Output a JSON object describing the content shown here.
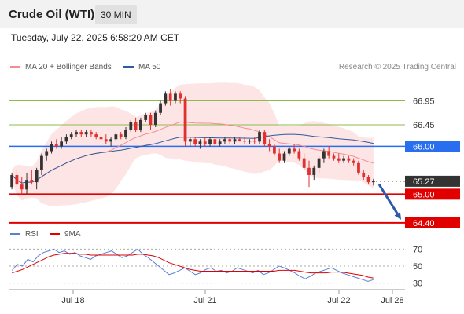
{
  "header": {
    "instrument": "Crude Oil (WTI)",
    "timeframe": "30 MIN"
  },
  "timestamp": "Tuesday, July 22, 2025 6:58:20 AM CET",
  "legend": {
    "ma20_label": "MA 20 + Bollinger Bands",
    "ma50_label": "MA 50",
    "credit": "Research © 2025 Trading Central",
    "rsi_label": "RSI",
    "rsi_ma_label": "9MA"
  },
  "colors": {
    "ma20": "#f28e8e",
    "ma50": "#2f5a9e",
    "up": "#333333",
    "down": "#e03030",
    "support": "#e00000",
    "pivot": "#2a6ef0",
    "resistance": "#8dbb4f",
    "band_fill": "#fde0e0",
    "rsi": "#5a7fd6",
    "rsi_ma": "#e00000",
    "arrow": "#2a5aa8"
  },
  "chart_data": [
    {
      "type": "candlestick",
      "title": "Crude Oil (WTI)",
      "interval": "30 MIN",
      "ylim": [
        64.3,
        67.5
      ],
      "x_ticks": [
        "Jul 18",
        "Jul 21",
        "Jul 22",
        "Jul 28"
      ],
      "candles": [
        {
          "o": 65.15,
          "h": 65.45,
          "l": 65.1,
          "c": 65.4
        },
        {
          "o": 65.4,
          "h": 65.5,
          "l": 65.15,
          "c": 65.2
        },
        {
          "o": 65.2,
          "h": 65.35,
          "l": 65.0,
          "c": 65.1
        },
        {
          "o": 65.1,
          "h": 65.45,
          "l": 65.0,
          "c": 65.3
        },
        {
          "o": 65.3,
          "h": 65.5,
          "l": 65.2,
          "c": 65.25
        },
        {
          "o": 65.25,
          "h": 65.55,
          "l": 65.1,
          "c": 65.5
        },
        {
          "o": 65.5,
          "h": 65.85,
          "l": 65.4,
          "c": 65.8
        },
        {
          "o": 65.8,
          "h": 65.95,
          "l": 65.7,
          "c": 65.9
        },
        {
          "o": 65.9,
          "h": 66.1,
          "l": 65.85,
          "c": 66.05
        },
        {
          "o": 66.05,
          "h": 66.15,
          "l": 65.95,
          "c": 66.0
        },
        {
          "o": 66.0,
          "h": 66.2,
          "l": 65.95,
          "c": 66.1
        },
        {
          "o": 66.1,
          "h": 66.25,
          "l": 66.05,
          "c": 66.2
        },
        {
          "o": 66.2,
          "h": 66.3,
          "l": 66.15,
          "c": 66.25
        },
        {
          "o": 66.25,
          "h": 66.35,
          "l": 66.2,
          "c": 66.3
        },
        {
          "o": 66.3,
          "h": 66.35,
          "l": 66.2,
          "c": 66.25
        },
        {
          "o": 66.25,
          "h": 66.35,
          "l": 66.2,
          "c": 66.3
        },
        {
          "o": 66.3,
          "h": 66.35,
          "l": 66.2,
          "c": 66.25
        },
        {
          "o": 66.25,
          "h": 66.3,
          "l": 66.15,
          "c": 66.2
        },
        {
          "o": 66.2,
          "h": 66.3,
          "l": 66.1,
          "c": 66.15
        },
        {
          "o": 66.15,
          "h": 66.25,
          "l": 66.05,
          "c": 66.1
        },
        {
          "o": 66.1,
          "h": 66.2,
          "l": 66.0,
          "c": 66.15
        },
        {
          "o": 66.15,
          "h": 66.3,
          "l": 66.1,
          "c": 66.25
        },
        {
          "o": 66.25,
          "h": 66.3,
          "l": 66.15,
          "c": 66.2
        },
        {
          "o": 66.2,
          "h": 66.4,
          "l": 66.15,
          "c": 66.35
        },
        {
          "o": 66.35,
          "h": 66.55,
          "l": 66.3,
          "c": 66.5
        },
        {
          "o": 66.5,
          "h": 66.6,
          "l": 66.3,
          "c": 66.35
        },
        {
          "o": 66.35,
          "h": 66.6,
          "l": 66.3,
          "c": 66.55
        },
        {
          "o": 66.55,
          "h": 66.7,
          "l": 66.5,
          "c": 66.65
        },
        {
          "o": 66.65,
          "h": 66.7,
          "l": 66.35,
          "c": 66.45
        },
        {
          "o": 66.45,
          "h": 66.75,
          "l": 66.4,
          "c": 66.7
        },
        {
          "o": 66.7,
          "h": 66.95,
          "l": 66.65,
          "c": 66.9
        },
        {
          "o": 66.9,
          "h": 67.15,
          "l": 66.85,
          "c": 67.1
        },
        {
          "o": 67.1,
          "h": 67.2,
          "l": 66.85,
          "c": 66.95
        },
        {
          "o": 66.95,
          "h": 67.15,
          "l": 66.9,
          "c": 67.1
        },
        {
          "o": 67.1,
          "h": 67.15,
          "l": 66.9,
          "c": 67.0
        },
        {
          "o": 67.0,
          "h": 67.05,
          "l": 66.0,
          "c": 66.1
        },
        {
          "o": 66.1,
          "h": 66.2,
          "l": 66.0,
          "c": 66.15
        },
        {
          "o": 66.15,
          "h": 66.2,
          "l": 66.0,
          "c": 66.05
        },
        {
          "o": 66.05,
          "h": 66.15,
          "l": 65.95,
          "c": 66.1
        },
        {
          "o": 66.1,
          "h": 66.2,
          "l": 66.0,
          "c": 66.05
        },
        {
          "o": 66.05,
          "h": 66.2,
          "l": 66.0,
          "c": 66.15
        },
        {
          "o": 66.15,
          "h": 66.2,
          "l": 66.0,
          "c": 66.05
        },
        {
          "o": 66.05,
          "h": 66.15,
          "l": 66.0,
          "c": 66.1
        },
        {
          "o": 66.1,
          "h": 66.2,
          "l": 66.05,
          "c": 66.15
        },
        {
          "o": 66.15,
          "h": 66.2,
          "l": 66.05,
          "c": 66.1
        },
        {
          "o": 66.1,
          "h": 66.2,
          "l": 66.05,
          "c": 66.15
        },
        {
          "o": 66.15,
          "h": 66.2,
          "l": 66.1,
          "c": 66.12
        },
        {
          "o": 66.12,
          "h": 66.2,
          "l": 66.05,
          "c": 66.1
        },
        {
          "o": 66.1,
          "h": 66.15,
          "l": 66.05,
          "c": 66.12
        },
        {
          "o": 66.12,
          "h": 66.2,
          "l": 66.05,
          "c": 66.1
        },
        {
          "o": 66.1,
          "h": 66.35,
          "l": 66.05,
          "c": 66.3
        },
        {
          "o": 66.3,
          "h": 66.35,
          "l": 66.0,
          "c": 66.05
        },
        {
          "o": 66.05,
          "h": 66.15,
          "l": 65.9,
          "c": 66.0
        },
        {
          "o": 66.0,
          "h": 66.05,
          "l": 65.8,
          "c": 65.85
        },
        {
          "o": 65.85,
          "h": 65.95,
          "l": 65.65,
          "c": 65.7
        },
        {
          "o": 65.7,
          "h": 65.9,
          "l": 65.65,
          "c": 65.85
        },
        {
          "o": 65.85,
          "h": 66.0,
          "l": 65.8,
          "c": 65.95
        },
        {
          "o": 65.95,
          "h": 66.05,
          "l": 65.85,
          "c": 65.9
        },
        {
          "o": 65.9,
          "h": 65.95,
          "l": 65.7,
          "c": 65.75
        },
        {
          "o": 65.75,
          "h": 65.85,
          "l": 65.5,
          "c": 65.55
        },
        {
          "o": 65.55,
          "h": 65.7,
          "l": 65.15,
          "c": 65.4
        },
        {
          "o": 65.4,
          "h": 65.6,
          "l": 65.3,
          "c": 65.55
        },
        {
          "o": 65.55,
          "h": 65.8,
          "l": 65.45,
          "c": 65.75
        },
        {
          "o": 65.75,
          "h": 65.95,
          "l": 65.65,
          "c": 65.9
        },
        {
          "o": 65.9,
          "h": 66.0,
          "l": 65.75,
          "c": 65.8
        },
        {
          "o": 65.8,
          "h": 65.85,
          "l": 65.7,
          "c": 65.75
        },
        {
          "o": 65.75,
          "h": 65.85,
          "l": 65.65,
          "c": 65.7
        },
        {
          "o": 65.7,
          "h": 65.8,
          "l": 65.65,
          "c": 65.75
        },
        {
          "o": 65.75,
          "h": 65.8,
          "l": 65.65,
          "c": 65.7
        },
        {
          "o": 65.7,
          "h": 65.75,
          "l": 65.6,
          "c": 65.65
        },
        {
          "o": 65.65,
          "h": 65.7,
          "l": 65.4,
          "c": 65.45
        },
        {
          "o": 65.45,
          "h": 65.5,
          "l": 65.3,
          "c": 65.35
        },
        {
          "o": 65.35,
          "h": 65.4,
          "l": 65.2,
          "c": 65.25
        },
        {
          "o": 65.25,
          "h": 65.32,
          "l": 65.18,
          "c": 65.27
        }
      ],
      "levels": [
        {
          "value": 66.95,
          "label": "66.95",
          "kind": "resistance"
        },
        {
          "value": 66.45,
          "label": "66.45",
          "kind": "resistance"
        },
        {
          "value": 66.0,
          "label": "66.00",
          "kind": "pivot"
        },
        {
          "value": 65.27,
          "label": "65.27",
          "kind": "last"
        },
        {
          "value": 65.0,
          "label": "65.00",
          "kind": "support"
        },
        {
          "value": 64.4,
          "label": "64.40",
          "kind": "support"
        }
      ],
      "forecast": {
        "from": 65.27,
        "to": 64.4
      }
    },
    {
      "type": "line",
      "title": "RSI",
      "ylim": [
        25,
        75
      ],
      "y_ticks": [
        70,
        50,
        30
      ],
      "series": [
        {
          "name": "RSI",
          "values": [
            45,
            52,
            50,
            58,
            55,
            62,
            66,
            68,
            70,
            66,
            68,
            64,
            66,
            62,
            60,
            58,
            62,
            64,
            66,
            68,
            64,
            60,
            62,
            66,
            70,
            64,
            60,
            55,
            50,
            45,
            40,
            42,
            45,
            48,
            44,
            40,
            42,
            46,
            48,
            44,
            45,
            42,
            44,
            48,
            46,
            44,
            42,
            45,
            40,
            42,
            46,
            50,
            48,
            45,
            42,
            38,
            35,
            38,
            42,
            44,
            46,
            48,
            45,
            42,
            40,
            38,
            36,
            34,
            32,
            34
          ]
        },
        {
          "name": "9MA",
          "values": [
            42,
            44,
            46,
            49,
            52,
            55,
            58,
            61,
            63,
            64,
            65,
            65,
            65,
            64,
            64,
            63,
            63,
            63,
            63,
            63,
            63,
            63,
            63,
            63,
            64,
            64,
            63,
            62,
            60,
            57,
            54,
            52,
            50,
            48,
            46,
            45,
            44,
            44,
            44,
            44,
            44,
            44,
            44,
            44,
            44,
            44,
            44,
            44,
            44,
            44,
            44,
            45,
            45,
            45,
            45,
            44,
            43,
            42,
            42,
            42,
            42,
            43,
            43,
            43,
            42,
            41,
            40,
            39,
            37,
            36
          ]
        }
      ]
    }
  ]
}
